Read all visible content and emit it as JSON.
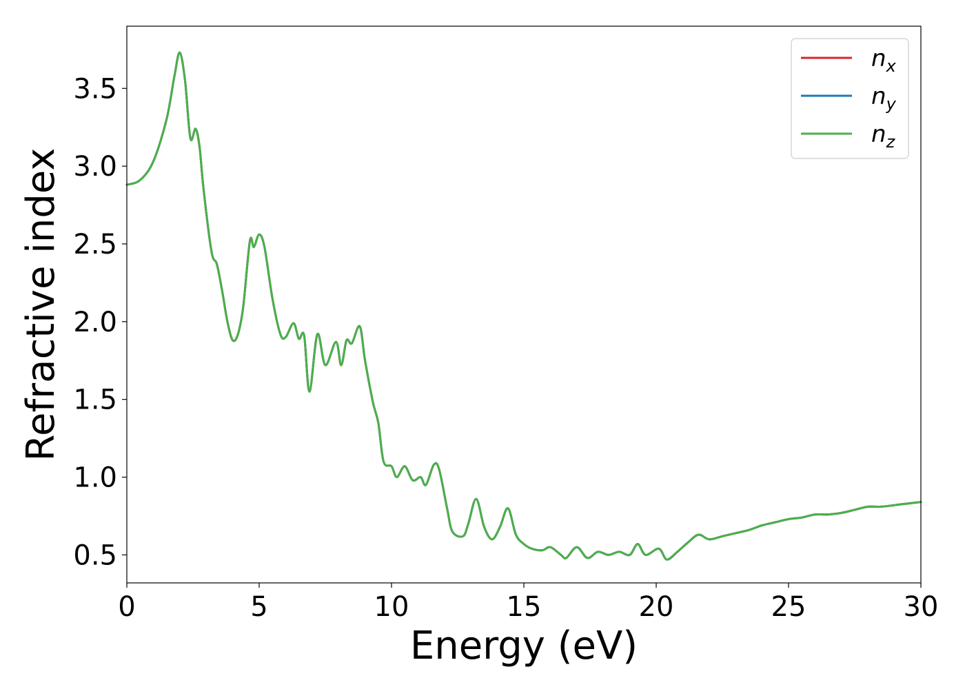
{
  "chart_data": {
    "type": "line",
    "title": "",
    "xlabel": "Energy (eV)",
    "ylabel": "Refractive index",
    "xlim": [
      0,
      30
    ],
    "ylim": [
      0.32,
      3.9
    ],
    "xticks": [
      0,
      5,
      10,
      15,
      20,
      25,
      30
    ],
    "xtick_labels": [
      "0",
      "5",
      "10",
      "15",
      "20",
      "25",
      "30"
    ],
    "yticks": [
      0.5,
      1.0,
      1.5,
      2.0,
      2.5,
      3.0,
      3.5
    ],
    "ytick_labels": [
      "0.5",
      "1.0",
      "1.5",
      "2.0",
      "2.5",
      "3.0",
      "3.5"
    ],
    "grid": false,
    "legend_position": "top-right",
    "legend": [
      {
        "base": "n",
        "sub": "x",
        "color": "#d62728"
      },
      {
        "base": "n",
        "sub": "y",
        "color": "#1f77b4"
      },
      {
        "base": "n",
        "sub": "z",
        "color": "#4daf4a"
      }
    ],
    "series": [
      {
        "legend_index": 0,
        "color": "#d62728",
        "x": [
          0,
          0.5,
          1.0,
          1.5,
          1.8,
          2.0,
          2.2,
          2.4,
          2.6,
          2.75,
          2.9,
          3.2,
          3.4,
          3.6,
          3.8,
          4.0,
          4.2,
          4.4,
          4.65,
          4.8,
          5.0,
          5.2,
          5.5,
          5.8,
          6.0,
          6.3,
          6.5,
          6.7,
          6.9,
          7.2,
          7.5,
          7.9,
          8.1,
          8.3,
          8.5,
          8.8,
          9.0,
          9.3,
          9.5,
          9.7,
          10.0,
          10.2,
          10.5,
          10.8,
          11.1,
          11.3,
          11.6,
          11.8,
          12.1,
          12.3,
          12.7,
          12.9,
          13.2,
          13.5,
          13.8,
          14.1,
          14.4,
          14.7,
          15.0,
          15.3,
          15.7,
          16.0,
          16.4,
          16.6,
          17.0,
          17.4,
          17.8,
          18.2,
          18.6,
          19.0,
          19.3,
          19.6,
          20.1,
          20.4,
          20.8,
          21.2,
          21.6,
          22.0,
          22.5,
          23.0,
          23.5,
          24.0,
          24.5,
          25.0,
          25.5,
          26.0,
          26.5,
          27.0,
          27.5,
          28.0,
          28.5,
          29.0,
          29.5,
          30.0
        ],
        "y": [
          2.88,
          2.91,
          3.03,
          3.3,
          3.58,
          3.73,
          3.55,
          3.18,
          3.24,
          3.12,
          2.85,
          2.45,
          2.37,
          2.2,
          2.0,
          1.88,
          1.92,
          2.1,
          2.52,
          2.48,
          2.56,
          2.48,
          2.15,
          1.92,
          1.9,
          1.99,
          1.89,
          1.91,
          1.55,
          1.92,
          1.72,
          1.87,
          1.72,
          1.88,
          1.86,
          1.97,
          1.75,
          1.48,
          1.35,
          1.1,
          1.07,
          1.0,
          1.07,
          0.98,
          1.0,
          0.95,
          1.08,
          1.05,
          0.8,
          0.65,
          0.62,
          0.7,
          0.86,
          0.68,
          0.6,
          0.68,
          0.8,
          0.63,
          0.57,
          0.54,
          0.53,
          0.55,
          0.5,
          0.48,
          0.55,
          0.48,
          0.52,
          0.5,
          0.52,
          0.5,
          0.57,
          0.5,
          0.54,
          0.47,
          0.52,
          0.58,
          0.63,
          0.6,
          0.62,
          0.64,
          0.66,
          0.69,
          0.71,
          0.73,
          0.74,
          0.76,
          0.76,
          0.77,
          0.79,
          0.81,
          0.81,
          0.82,
          0.83,
          0.84
        ]
      },
      {
        "legend_index": 1,
        "color": "#1f77b4",
        "x": [
          0,
          0.5,
          1.0,
          1.5,
          1.8,
          2.0,
          2.2,
          2.4,
          2.6,
          2.75,
          2.9,
          3.2,
          3.4,
          3.6,
          3.8,
          4.0,
          4.2,
          4.4,
          4.65,
          4.8,
          5.0,
          5.2,
          5.5,
          5.8,
          6.0,
          6.3,
          6.5,
          6.7,
          6.9,
          7.2,
          7.5,
          7.9,
          8.1,
          8.3,
          8.5,
          8.8,
          9.0,
          9.3,
          9.5,
          9.7,
          10.0,
          10.2,
          10.5,
          10.8,
          11.1,
          11.3,
          11.6,
          11.8,
          12.1,
          12.3,
          12.7,
          12.9,
          13.2,
          13.5,
          13.8,
          14.1,
          14.4,
          14.7,
          15.0,
          15.3,
          15.7,
          16.0,
          16.4,
          16.6,
          17.0,
          17.4,
          17.8,
          18.2,
          18.6,
          19.0,
          19.3,
          19.6,
          20.1,
          20.4,
          20.8,
          21.2,
          21.6,
          22.0,
          22.5,
          23.0,
          23.5,
          24.0,
          24.5,
          25.0,
          25.5,
          26.0,
          26.5,
          27.0,
          27.5,
          28.0,
          28.5,
          29.0,
          29.5,
          30.0
        ],
        "y": [
          2.88,
          2.91,
          3.03,
          3.3,
          3.58,
          3.73,
          3.55,
          3.18,
          3.24,
          3.12,
          2.85,
          2.45,
          2.37,
          2.2,
          2.0,
          1.88,
          1.92,
          2.1,
          2.52,
          2.48,
          2.56,
          2.48,
          2.15,
          1.92,
          1.9,
          1.99,
          1.89,
          1.91,
          1.55,
          1.92,
          1.72,
          1.87,
          1.72,
          1.88,
          1.86,
          1.97,
          1.75,
          1.48,
          1.35,
          1.1,
          1.07,
          1.0,
          1.07,
          0.98,
          1.0,
          0.95,
          1.08,
          1.05,
          0.8,
          0.65,
          0.62,
          0.7,
          0.86,
          0.68,
          0.6,
          0.68,
          0.8,
          0.63,
          0.57,
          0.54,
          0.53,
          0.55,
          0.5,
          0.48,
          0.55,
          0.48,
          0.52,
          0.5,
          0.52,
          0.5,
          0.57,
          0.5,
          0.54,
          0.47,
          0.52,
          0.58,
          0.63,
          0.6,
          0.62,
          0.64,
          0.66,
          0.69,
          0.71,
          0.73,
          0.74,
          0.76,
          0.76,
          0.77,
          0.79,
          0.81,
          0.81,
          0.82,
          0.83,
          0.84
        ]
      },
      {
        "legend_index": 2,
        "color": "#4daf4a",
        "x": [
          0,
          0.5,
          1.0,
          1.5,
          1.8,
          2.0,
          2.2,
          2.4,
          2.6,
          2.75,
          2.9,
          3.2,
          3.4,
          3.6,
          3.8,
          4.0,
          4.2,
          4.4,
          4.65,
          4.8,
          5.0,
          5.2,
          5.5,
          5.8,
          6.0,
          6.3,
          6.5,
          6.7,
          6.9,
          7.2,
          7.5,
          7.9,
          8.1,
          8.3,
          8.5,
          8.8,
          9.0,
          9.3,
          9.5,
          9.7,
          10.0,
          10.2,
          10.5,
          10.8,
          11.1,
          11.3,
          11.6,
          11.8,
          12.1,
          12.3,
          12.7,
          12.9,
          13.2,
          13.5,
          13.8,
          14.1,
          14.4,
          14.7,
          15.0,
          15.3,
          15.7,
          16.0,
          16.4,
          16.6,
          17.0,
          17.4,
          17.8,
          18.2,
          18.6,
          19.0,
          19.3,
          19.6,
          20.1,
          20.4,
          20.8,
          21.2,
          21.6,
          22.0,
          22.5,
          23.0,
          23.5,
          24.0,
          24.5,
          25.0,
          25.5,
          26.0,
          26.5,
          27.0,
          27.5,
          28.0,
          28.5,
          29.0,
          29.5,
          30.0
        ],
        "y": [
          2.88,
          2.91,
          3.03,
          3.3,
          3.58,
          3.73,
          3.55,
          3.18,
          3.24,
          3.12,
          2.85,
          2.45,
          2.37,
          2.2,
          2.0,
          1.88,
          1.92,
          2.1,
          2.52,
          2.48,
          2.56,
          2.48,
          2.15,
          1.92,
          1.9,
          1.99,
          1.89,
          1.91,
          1.55,
          1.92,
          1.72,
          1.87,
          1.72,
          1.88,
          1.86,
          1.97,
          1.75,
          1.48,
          1.35,
          1.1,
          1.07,
          1.0,
          1.07,
          0.98,
          1.0,
          0.95,
          1.08,
          1.05,
          0.8,
          0.65,
          0.62,
          0.7,
          0.86,
          0.68,
          0.6,
          0.68,
          0.8,
          0.63,
          0.57,
          0.54,
          0.53,
          0.55,
          0.5,
          0.48,
          0.55,
          0.48,
          0.52,
          0.5,
          0.52,
          0.5,
          0.57,
          0.5,
          0.54,
          0.47,
          0.52,
          0.58,
          0.63,
          0.6,
          0.62,
          0.64,
          0.66,
          0.69,
          0.71,
          0.73,
          0.74,
          0.76,
          0.76,
          0.77,
          0.79,
          0.81,
          0.81,
          0.82,
          0.83,
          0.84
        ]
      }
    ]
  }
}
